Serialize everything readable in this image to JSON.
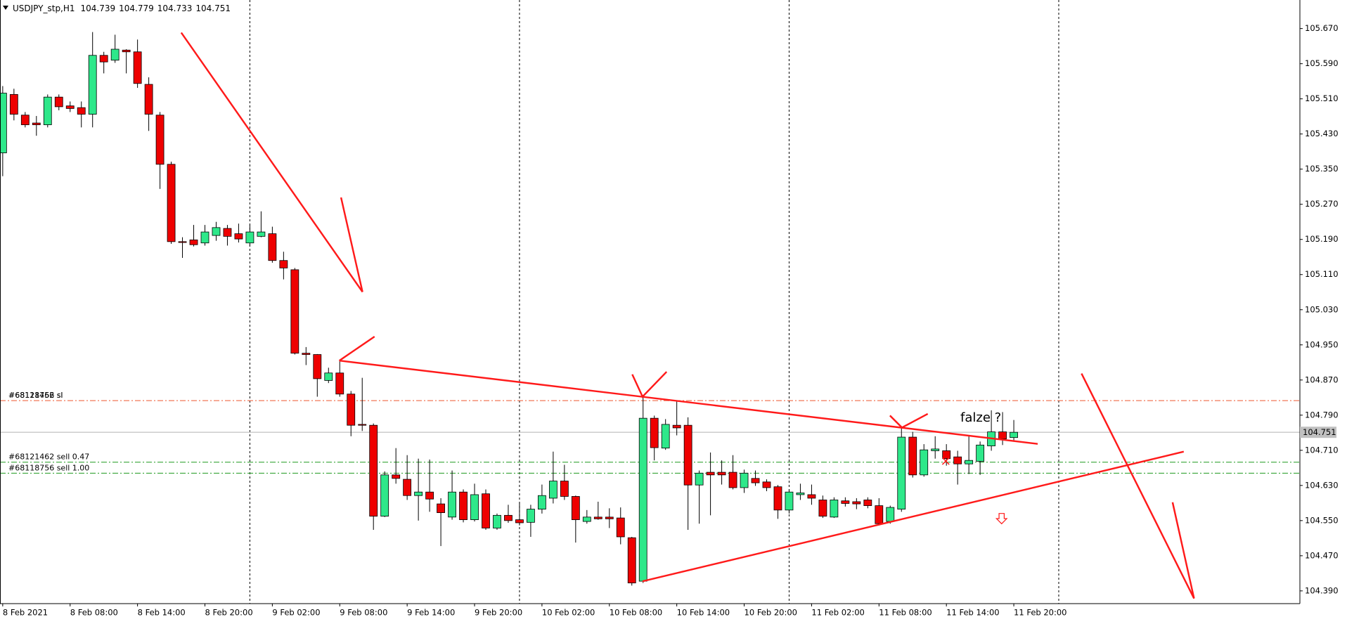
{
  "chart_data": {
    "type": "candlestick",
    "symbol": "USDJPY_stp,H1",
    "categories": [
      "8 Feb 2021",
      null,
      null,
      null,
      null,
      null,
      "8 Feb 08:00",
      null,
      null,
      null,
      null,
      null,
      "8 Feb 14:00",
      null,
      null,
      null,
      null,
      null,
      "8 Feb 20:00",
      null,
      null,
      null,
      null,
      null,
      "9 Feb 02:00",
      null,
      null,
      null,
      null,
      null,
      "9 Feb 08:00",
      null,
      null,
      null,
      null,
      null,
      "9 Feb 14:00",
      null,
      null,
      null,
      null,
      null,
      "9 Feb 20:00",
      null,
      null,
      null,
      null,
      null,
      "10 Feb 02:00",
      null,
      null,
      null,
      null,
      null,
      "10 Feb 08:00",
      null,
      null,
      null,
      null,
      null,
      "10 Feb 14:00",
      null,
      null,
      null,
      null,
      null,
      "10 Feb 20:00",
      null,
      null,
      null,
      null,
      null,
      "11 Feb 02:00",
      null,
      null,
      null,
      null,
      null,
      "11 Feb 08:00",
      null,
      null,
      null,
      null,
      null,
      "11 Feb 14:00",
      null,
      null,
      null,
      null,
      null,
      "11 Feb 20:00"
    ],
    "open": [
      105.387,
      105.52,
      105.473,
      105.455,
      105.451,
      105.514,
      105.494,
      105.49,
      105.475,
      105.609,
      105.598,
      105.621,
      105.617,
      105.543,
      105.473,
      105.361,
      105.185,
      105.189,
      105.182,
      105.199,
      105.215,
      105.203,
      105.182,
      105.197,
      105.203,
      105.142,
      105.121,
      104.931,
      104.928,
      104.869,
      104.886,
      104.838,
      104.769,
      104.767,
      104.56,
      104.654,
      104.644,
      104.607,
      104.615,
      104.588,
      104.558,
      104.615,
      104.552,
      104.611,
      104.533,
      104.562,
      104.552,
      104.546,
      104.576,
      104.601,
      104.64,
      104.605,
      104.548,
      104.558,
      104.558,
      104.556,
      104.511,
      104.412,
      104.783,
      104.715,
      104.767,
      104.767,
      104.631,
      104.66,
      104.66,
      104.66,
      104.625,
      104.646,
      104.638,
      104.627,
      104.574,
      104.609,
      104.609,
      104.597,
      104.558,
      104.595,
      104.593,
      104.597,
      104.584,
      104.548,
      104.576,
      104.74,
      104.654,
      104.709,
      104.709,
      104.695,
      104.679,
      104.685,
      104.72,
      104.752,
      104.739
    ],
    "high": [
      105.539,
      105.533,
      105.48,
      105.471,
      105.52,
      105.52,
      105.504,
      105.504,
      105.662,
      105.617,
      105.656,
      105.623,
      105.645,
      105.559,
      105.48,
      105.367,
      105.195,
      105.223,
      105.223,
      105.23,
      105.223,
      105.226,
      105.223,
      105.254,
      105.219,
      105.162,
      105.125,
      104.945,
      104.929,
      104.898,
      104.914,
      104.845,
      104.875,
      104.771,
      104.662,
      104.715,
      104.699,
      104.691,
      104.689,
      104.601,
      104.664,
      104.621,
      104.634,
      104.621,
      104.566,
      104.586,
      104.591,
      104.586,
      104.632,
      104.707,
      104.677,
      104.607,
      104.574,
      104.593,
      104.578,
      104.58,
      104.513,
      104.836,
      104.789,
      104.781,
      104.824,
      104.785,
      104.664,
      104.705,
      104.687,
      104.699,
      104.666,
      104.664,
      104.644,
      104.631,
      104.621,
      104.634,
      104.632,
      104.607,
      104.603,
      104.603,
      104.601,
      104.603,
      104.601,
      104.584,
      104.765,
      104.752,
      104.724,
      104.742,
      104.724,
      104.709,
      104.742,
      104.73,
      104.801,
      104.797,
      104.779
    ],
    "low": [
      105.334,
      105.461,
      105.445,
      105.426,
      105.445,
      105.484,
      105.48,
      105.445,
      105.445,
      105.568,
      105.592,
      105.568,
      105.535,
      105.437,
      105.305,
      105.18,
      105.148,
      105.174,
      105.176,
      105.187,
      105.176,
      105.183,
      105.174,
      105.195,
      105.137,
      105.099,
      104.928,
      104.904,
      104.832,
      104.863,
      104.832,
      104.742,
      104.754,
      104.529,
      104.558,
      104.634,
      104.597,
      104.55,
      104.57,
      104.492,
      104.552,
      104.546,
      104.548,
      104.529,
      104.529,
      104.545,
      104.539,
      104.513,
      104.566,
      104.589,
      104.597,
      104.5,
      104.543,
      104.552,
      104.533,
      104.496,
      104.402,
      104.408,
      104.687,
      104.711,
      104.744,
      104.529,
      104.543,
      104.562,
      104.632,
      104.621,
      104.613,
      104.629,
      104.617,
      104.554,
      104.566,
      104.597,
      104.586,
      104.556,
      104.556,
      104.582,
      104.576,
      104.578,
      104.539,
      104.543,
      104.57,
      104.648,
      104.65,
      104.691,
      104.675,
      104.632,
      104.656,
      104.654,
      104.709,
      104.722,
      104.733
    ],
    "close": [
      105.523,
      105.475,
      105.451,
      105.451,
      105.514,
      105.492,
      105.488,
      105.475,
      105.609,
      105.594,
      105.623,
      105.617,
      105.545,
      105.475,
      105.361,
      105.185,
      105.183,
      105.178,
      105.207,
      105.217,
      105.197,
      105.191,
      105.207,
      105.207,
      105.142,
      105.125,
      104.931,
      104.928,
      104.873,
      104.886,
      104.838,
      104.767,
      104.767,
      104.56,
      104.654,
      104.646,
      104.607,
      104.615,
      104.599,
      104.568,
      104.615,
      104.552,
      104.609,
      104.533,
      104.562,
      104.55,
      104.545,
      104.576,
      104.607,
      104.64,
      104.605,
      104.552,
      104.558,
      104.554,
      104.554,
      104.513,
      104.408,
      104.783,
      104.716,
      104.769,
      104.761,
      104.631,
      104.658,
      104.654,
      104.654,
      104.625,
      104.658,
      104.636,
      104.625,
      104.574,
      104.615,
      104.613,
      104.601,
      104.56,
      104.597,
      104.589,
      104.588,
      104.584,
      104.543,
      104.58,
      104.74,
      104.654,
      104.711,
      104.713,
      104.691,
      104.679,
      104.687,
      104.722,
      104.752,
      104.736,
      104.751
    ],
    "up_color": "#2ee88a",
    "down_color": "#ee0000",
    "ylim": [
      104.361,
      105.735
    ],
    "yticks": [
      {
        "value": 105.67,
        "label": "105.670"
      },
      {
        "value": 105.59,
        "label": "105.590"
      },
      {
        "value": 105.51,
        "label": "105.510"
      },
      {
        "value": 105.43,
        "label": "105.430"
      },
      {
        "value": 105.35,
        "label": "105.350"
      },
      {
        "value": 105.27,
        "label": "105.270"
      },
      {
        "value": 105.19,
        "label": "105.190"
      },
      {
        "value": 105.11,
        "label": "105.110"
      },
      {
        "value": 105.03,
        "label": "105.030"
      },
      {
        "value": 104.95,
        "label": "104.950"
      },
      {
        "value": 104.87,
        "label": "104.870"
      },
      {
        "value": 104.79,
        "label": "104.790"
      },
      {
        "value": 104.71,
        "label": "104.710"
      },
      {
        "value": 104.63,
        "label": "104.630"
      },
      {
        "value": 104.55,
        "label": "104.550"
      },
      {
        "value": 104.47,
        "label": "104.470"
      },
      {
        "value": 104.39,
        "label": "104.390"
      }
    ],
    "period_separators": true,
    "order_lines": [
      {
        "label": "#68121462 sl",
        "value": 104.823,
        "color": "#f07050"
      },
      {
        "label": "#68118756 sl",
        "value": 104.823,
        "color": "#f07050"
      },
      {
        "label": "#68121462 sell 0.47",
        "value": 104.683,
        "color": "#1f9a1f"
      },
      {
        "label": "#68118756 sell 1.00",
        "value": 104.658,
        "color": "#1f9a1f"
      }
    ],
    "annotations": [
      {
        "text": "falze ?",
        "color": "#9932cc"
      }
    ]
  }
}
